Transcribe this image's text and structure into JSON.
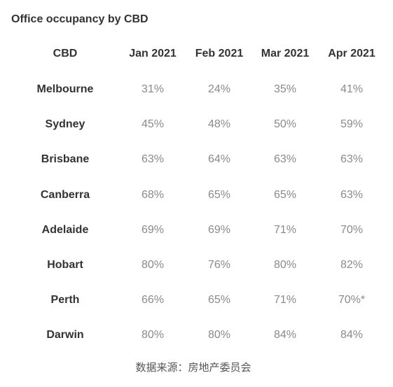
{
  "title": "Office occupancy by CBD",
  "source": "数据来源：房地产委员会",
  "chart_data": {
    "type": "table",
    "columns": [
      "CBD",
      "Jan 2021",
      "Feb 2021",
      "Mar 2021",
      "Apr 2021"
    ],
    "rows": [
      {
        "label": "Melbourne",
        "values": [
          "31%",
          "24%",
          "35%",
          "41%"
        ]
      },
      {
        "label": "Sydney",
        "values": [
          "45%",
          "48%",
          "50%",
          "59%"
        ]
      },
      {
        "label": "Brisbane",
        "values": [
          "63%",
          "64%",
          "63%",
          "63%"
        ]
      },
      {
        "label": "Canberra",
        "values": [
          "68%",
          "65%",
          "65%",
          "63%"
        ]
      },
      {
        "label": "Adelaide",
        "values": [
          "69%",
          "69%",
          "71%",
          "70%"
        ]
      },
      {
        "label": "Hobart",
        "values": [
          "80%",
          "76%",
          "80%",
          "82%"
        ]
      },
      {
        "label": "Perth",
        "values": [
          "66%",
          "65%",
          "71%",
          "70%*"
        ]
      },
      {
        "label": "Darwin",
        "values": [
          "80%",
          "80%",
          "84%",
          "84%"
        ]
      }
    ]
  }
}
